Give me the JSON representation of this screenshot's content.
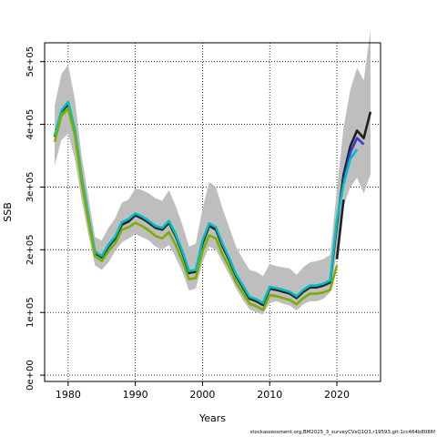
{
  "chart_data": {
    "type": "line",
    "title": "",
    "xlabel": "Years",
    "ylabel": "SSB",
    "xlim": [
      1976.5,
      2026.5
    ],
    "ylim": [
      -10000,
      530000
    ],
    "grid": true,
    "grid_style": "dotted",
    "x_ticks": [
      1980,
      1990,
      2000,
      2010,
      2020
    ],
    "x_tick_labels": [
      "1980",
      "1990",
      "2000",
      "2010",
      "2020"
    ],
    "y_ticks": [
      0,
      100000,
      200000,
      300000,
      400000,
      500000
    ],
    "y_tick_labels": [
      "0e+00",
      "1e+05",
      "2e+05",
      "3e+05",
      "4e+05",
      "5e+05"
    ],
    "band": {
      "color": "#bebebe",
      "x": [
        1978,
        1979,
        1980,
        1981,
        1982,
        1983,
        1984,
        1985,
        1986,
        1987,
        1988,
        1989,
        1990,
        1991,
        1992,
        1993,
        1994,
        1995,
        1996,
        1997,
        1998,
        1999,
        2000,
        2001,
        2002,
        2003,
        2004,
        2005,
        2006,
        2007,
        2008,
        2009,
        2010,
        2011,
        2012,
        2013,
        2014,
        2015,
        2016,
        2017,
        2018,
        2019,
        2020,
        2021,
        2022,
        2023,
        2024,
        2025
      ],
      "upper": [
        430000,
        480000,
        495000,
        440000,
        350000,
        285000,
        220000,
        215000,
        235000,
        250000,
        275000,
        280000,
        298000,
        295000,
        290000,
        282000,
        278000,
        295000,
        270000,
        240000,
        205000,
        210000,
        265000,
        308000,
        300000,
        265000,
        235000,
        205000,
        185000,
        168000,
        165000,
        158000,
        177000,
        174000,
        172000,
        170000,
        160000,
        172000,
        180000,
        182000,
        185000,
        192000,
        295000,
        395000,
        455000,
        490000,
        470000,
        550000
      ],
      "lower": [
        335000,
        375000,
        385000,
        345000,
        280000,
        225000,
        175000,
        168000,
        180000,
        198000,
        212000,
        218000,
        225000,
        220000,
        215000,
        205000,
        200000,
        208000,
        188000,
        165000,
        135000,
        138000,
        180000,
        205000,
        200000,
        180000,
        160000,
        138000,
        120000,
        105000,
        100000,
        97000,
        115000,
        118000,
        114000,
        111000,
        103000,
        113000,
        118000,
        118000,
        122000,
        132000,
        195000,
        270000,
        300000,
        315000,
        290000,
        320000
      ]
    },
    "series": [
      {
        "color": "#1f1f1f",
        "x": [
          1978,
          1979,
          1980,
          1981,
          1982,
          1983,
          1984,
          1985,
          1986,
          1987,
          1988,
          1989,
          1990,
          1991,
          1992,
          1993,
          1994,
          1995,
          1996,
          1997,
          1998,
          1999,
          2000,
          2001,
          2002,
          2003,
          2004,
          2005,
          2006,
          2007,
          2008,
          2009,
          2010,
          2011,
          2012,
          2013,
          2014,
          2015,
          2016,
          2017,
          2018,
          2019,
          2020,
          2021,
          2022,
          2023,
          2024,
          2025
        ],
        "values": [
          380000,
          420000,
          432000,
          390000,
          315000,
          253000,
          195000,
          188000,
          205000,
          218000,
          240000,
          245000,
          255000,
          250000,
          243000,
          235000,
          232000,
          243000,
          222000,
          195000,
          163000,
          165000,
          210000,
          238000,
          232000,
          205000,
          183000,
          158000,
          140000,
          122000,
          118000,
          112000,
          138000,
          136000,
          133000,
          130000,
          123000,
          133000,
          140000,
          140000,
          143000,
          148000,
          240000,
          320000,
          365000,
          390000,
          378000,
          420000
        ]
      },
      {
        "color": "#3a3ad6",
        "x": [
          2021,
          2022,
          2023,
          2024
        ],
        "values": [
          310000,
          355000,
          378000,
          368000
        ]
      },
      {
        "color": "#00bfc4",
        "x": [
          1978,
          1979,
          1980,
          1981,
          1982,
          1983,
          1984,
          1985,
          1986,
          1987,
          1988,
          1989,
          1990,
          1991,
          1992,
          1993,
          1994,
          1995,
          1996,
          1997,
          1998,
          1999,
          2000,
          2001,
          2002,
          2003,
          2004,
          2005,
          2006,
          2007,
          2008,
          2009,
          2010,
          2011,
          2012,
          2013,
          2014,
          2015,
          2016,
          2017,
          2018,
          2019,
          2020,
          2021,
          2022,
          2023
        ],
        "values": [
          382000,
          422000,
          436000,
          392000,
          317000,
          255000,
          197000,
          190000,
          208000,
          221000,
          244000,
          249000,
          258000,
          253000,
          246000,
          238000,
          235000,
          246000,
          225000,
          198000,
          166000,
          168000,
          215000,
          242000,
          236000,
          209000,
          186000,
          161000,
          143000,
          125000,
          121000,
          115000,
          141000,
          139000,
          136000,
          133000,
          126000,
          136000,
          143000,
          143000,
          146000,
          151000,
          248000,
          305000,
          345000,
          360000
        ]
      },
      {
        "color": "#7cae00",
        "x": [
          1978,
          1979,
          1980,
          1981,
          1982,
          1983,
          1984,
          1985,
          1986,
          1987,
          1988,
          1989,
          1990,
          1991,
          1992,
          1993,
          1994,
          1995,
          1996,
          1997,
          1998,
          1999,
          2000,
          2001,
          2002,
          2003,
          2004,
          2005,
          2006,
          2007,
          2008,
          2009,
          2010,
          2011,
          2012,
          2013,
          2014,
          2015,
          2016,
          2017,
          2018,
          2019,
          2020
        ],
        "values": [
          372000,
          414000,
          425000,
          383000,
          308000,
          247000,
          190000,
          182000,
          198000,
          210000,
          232000,
          236000,
          243000,
          238000,
          231000,
          222000,
          218000,
          228000,
          208000,
          182000,
          153000,
          155000,
          198000,
          223000,
          218000,
          192000,
          172000,
          148000,
          131000,
          114000,
          110000,
          104000,
          128000,
          126000,
          123000,
          120000,
          113000,
          123000,
          130000,
          130000,
          132000,
          136000,
          175000
        ]
      },
      {
        "color": "#1f1f1f",
        "x": [
          2020,
          2021
        ],
        "values": [
          185000,
          280000
        ]
      }
    ]
  },
  "footer": {
    "source": "stockassessment.org,BM2025_3_surveyCVsQ1Q3,r19593,git:1cc464b8086f"
  }
}
